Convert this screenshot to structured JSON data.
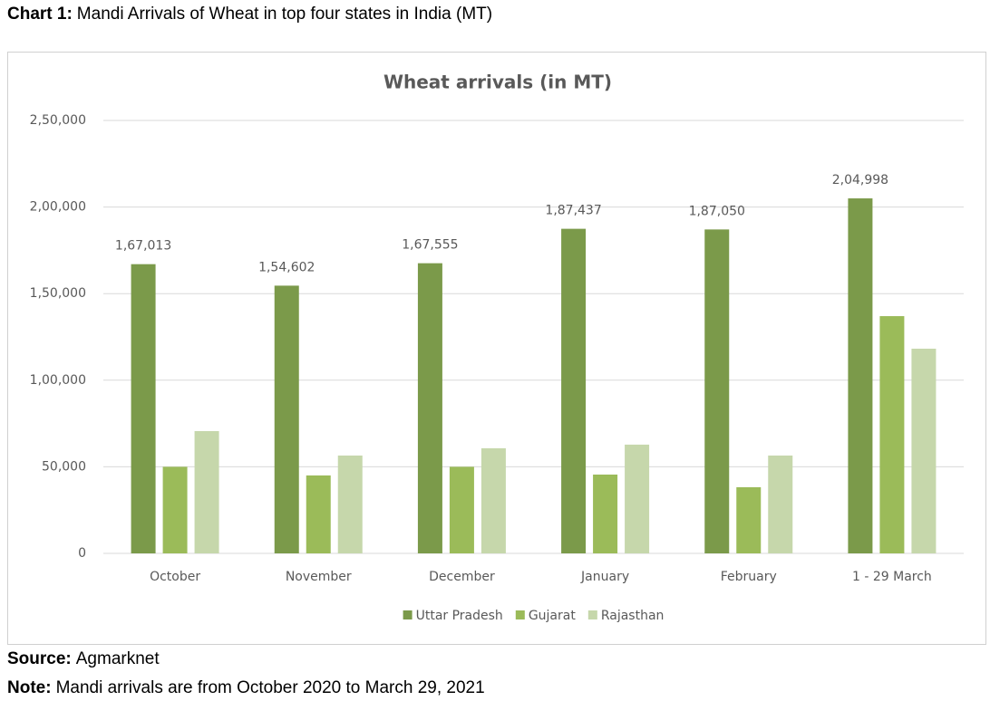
{
  "caption": {
    "label": "Chart 1:",
    "text": "Mandi Arrivals of Wheat in top four states in India (MT)"
  },
  "chart_data": {
    "type": "bar",
    "title": "Wheat arrivals (in MT)",
    "categories": [
      "October",
      "November",
      "December",
      "January",
      "February",
      "1 - 29 March"
    ],
    "series": [
      {
        "name": "Uttar Pradesh",
        "color": "#7b9a4a",
        "values": [
          167013,
          154602,
          167555,
          187437,
          187050,
          204998
        ],
        "value_labels": [
          "1,67,013",
          "1,54,602",
          "1,67,555",
          "1,87,437",
          "1,87,050",
          "2,04,998"
        ]
      },
      {
        "name": "Gujarat",
        "color": "#9bbb59",
        "values": [
          50000,
          45000,
          50000,
          45500,
          38200,
          137000
        ]
      },
      {
        "name": "Rajasthan",
        "color": "#c6d7ab",
        "values": [
          70600,
          56500,
          60700,
          62800,
          56500,
          118200
        ]
      }
    ],
    "ylim": [
      0,
      250000
    ],
    "yticks": [
      0,
      {
        "value": 50000,
        "label": "50,000"
      },
      {
        "value": 100000,
        "label": "1,00,000"
      },
      {
        "value": 150000,
        "label": "1,50,000"
      },
      {
        "value": 200000,
        "label": "2,00,000"
      },
      {
        "value": 250000,
        "label": "2,50,000"
      }
    ],
    "grid": true,
    "legend": "bottom"
  },
  "footer": {
    "source_label": "Source:",
    "source": "Agmarknet",
    "note_label": "Note:",
    "note": "Mandi arrivals are from October 2020 to March 29, 2021"
  }
}
